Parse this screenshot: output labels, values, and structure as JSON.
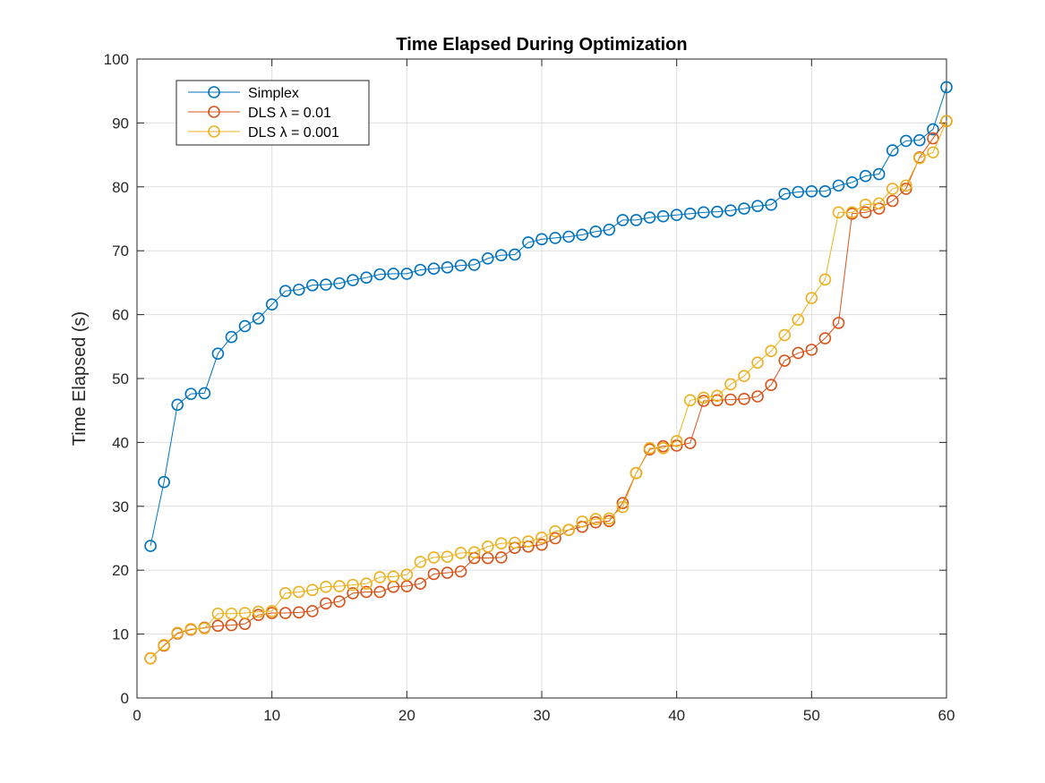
{
  "chart_data": {
    "type": "line",
    "title": "Time Elapsed During Optimization",
    "xlabel": "",
    "ylabel": "Time Elapsed (s)",
    "xlim": [
      0,
      60
    ],
    "ylim": [
      0,
      100
    ],
    "xticks": [
      "0",
      "10",
      "20",
      "30",
      "40",
      "50",
      "60"
    ],
    "yticks": [
      "0",
      "10",
      "20",
      "30",
      "40",
      "50",
      "60",
      "70",
      "80",
      "90",
      "100"
    ],
    "grid": true,
    "legend_position": "top-left",
    "marker": "circle",
    "x": [
      1,
      2,
      3,
      4,
      5,
      6,
      7,
      8,
      9,
      10,
      11,
      12,
      13,
      14,
      15,
      16,
      17,
      18,
      19,
      20,
      21,
      22,
      23,
      24,
      25,
      26,
      27,
      28,
      29,
      30,
      31,
      32,
      33,
      34,
      35,
      36,
      37,
      38,
      39,
      40,
      41,
      42,
      43,
      44,
      45,
      46,
      47,
      48,
      49,
      50,
      51,
      52,
      53,
      54,
      55,
      56,
      57,
      58,
      59,
      60
    ],
    "series": [
      {
        "name": "Simplex",
        "color": "#0072BD",
        "values": [
          23.8,
          33.8,
          45.9,
          47.6,
          47.7,
          53.9,
          56.5,
          58.2,
          59.4,
          61.6,
          63.7,
          63.9,
          64.6,
          64.7,
          64.9,
          65.4,
          65.8,
          66.3,
          66.4,
          66.4,
          67.0,
          67.2,
          67.4,
          67.7,
          67.8,
          68.8,
          69.3,
          69.4,
          71.3,
          71.8,
          72.0,
          72.2,
          72.5,
          73.0,
          73.3,
          74.8,
          74.8,
          75.2,
          75.4,
          75.6,
          75.8,
          76.0,
          76.1,
          76.3,
          76.6,
          77.0,
          77.2,
          78.9,
          79.2,
          79.3,
          79.3,
          80.2,
          80.7,
          81.7,
          82.0,
          85.7,
          87.2,
          87.3,
          89.0,
          95.6
        ]
      },
      {
        "name": "DLS λ = 0.01",
        "color": "#D95319",
        "values": [
          6.2,
          8.2,
          10.1,
          10.7,
          11.0,
          11.3,
          11.4,
          11.6,
          13.0,
          13.3,
          13.3,
          13.4,
          13.6,
          14.8,
          15.1,
          16.4,
          16.6,
          16.6,
          17.4,
          17.5,
          17.9,
          19.4,
          19.6,
          19.8,
          21.9,
          21.9,
          22.0,
          23.5,
          23.7,
          24.0,
          25.0,
          26.3,
          26.8,
          27.5,
          27.7,
          30.5,
          35.2,
          38.9,
          39.4,
          39.5,
          39.9,
          46.5,
          46.6,
          46.7,
          46.8,
          47.2,
          49.0,
          52.8,
          54.0,
          54.5,
          56.3,
          58.7,
          75.8,
          76.0,
          76.6,
          77.8,
          79.7,
          84.6,
          87.6,
          90.3
        ]
      },
      {
        "name": "DLS λ = 0.001",
        "color": "#EDB120",
        "values": [
          6.2,
          8.3,
          10.2,
          10.8,
          10.9,
          13.2,
          13.2,
          13.3,
          13.5,
          13.6,
          16.4,
          16.6,
          16.9,
          17.4,
          17.5,
          17.7,
          17.9,
          18.9,
          19.0,
          19.3,
          21.3,
          22.0,
          22.1,
          22.7,
          22.8,
          23.7,
          24.2,
          24.3,
          24.5,
          25.1,
          26.1,
          26.3,
          27.6,
          28.0,
          28.1,
          29.9,
          35.2,
          39.1,
          39.1,
          40.2,
          46.6,
          47.0,
          47.3,
          49.1,
          50.4,
          52.5,
          54.3,
          56.8,
          59.2,
          62.6,
          65.5,
          76.0,
          76.0,
          77.2,
          77.4,
          79.7,
          80.2,
          84.5,
          85.4,
          90.3
        ]
      }
    ]
  }
}
